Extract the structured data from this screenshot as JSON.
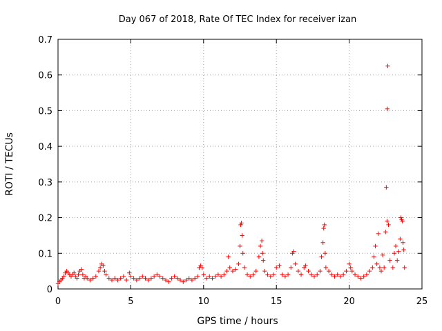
{
  "chart_data": {
    "type": "scatter",
    "title": "Day 067 of 2018, Rate Of TEC Index for receiver izan",
    "xlabel": "GPS time / hours",
    "ylabel": "ROTI / TECUs",
    "xlim": [
      0,
      25
    ],
    "ylim": [
      0,
      0.7
    ],
    "xticks": [
      0,
      5,
      10,
      15,
      20,
      25
    ],
    "yticks": [
      0,
      0.1,
      0.2,
      0.3,
      0.4,
      0.5,
      0.6,
      0.7
    ],
    "grid": true,
    "marker": "+",
    "color": "#ff0000",
    "series": [
      {
        "name": "",
        "points": [
          [
            0.0,
            0.015
          ],
          [
            0.1,
            0.02
          ],
          [
            0.2,
            0.025
          ],
          [
            0.3,
            0.03
          ],
          [
            0.4,
            0.035
          ],
          [
            0.5,
            0.045
          ],
          [
            0.6,
            0.05
          ],
          [
            0.7,
            0.045
          ],
          [
            0.8,
            0.04
          ],
          [
            0.9,
            0.035
          ],
          [
            1.0,
            0.04
          ],
          [
            1.1,
            0.045
          ],
          [
            1.2,
            0.035
          ],
          [
            1.3,
            0.03
          ],
          [
            1.4,
            0.04
          ],
          [
            1.5,
            0.05
          ],
          [
            1.6,
            0.055
          ],
          [
            1.7,
            0.04
          ],
          [
            1.8,
            0.03
          ],
          [
            1.9,
            0.035
          ],
          [
            2.0,
            0.03
          ],
          [
            2.2,
            0.025
          ],
          [
            2.4,
            0.03
          ],
          [
            2.6,
            0.035
          ],
          [
            2.8,
            0.05
          ],
          [
            2.9,
            0.06
          ],
          [
            3.0,
            0.07
          ],
          [
            3.1,
            0.065
          ],
          [
            3.2,
            0.05
          ],
          [
            3.3,
            0.04
          ],
          [
            3.5,
            0.03
          ],
          [
            3.7,
            0.025
          ],
          [
            3.9,
            0.03
          ],
          [
            4.1,
            0.025
          ],
          [
            4.3,
            0.03
          ],
          [
            4.5,
            0.035
          ],
          [
            4.7,
            0.025
          ],
          [
            4.9,
            0.045
          ],
          [
            5.0,
            0.035
          ],
          [
            5.2,
            0.03
          ],
          [
            5.4,
            0.025
          ],
          [
            5.6,
            0.03
          ],
          [
            5.8,
            0.035
          ],
          [
            6.0,
            0.03
          ],
          [
            6.2,
            0.025
          ],
          [
            6.4,
            0.03
          ],
          [
            6.6,
            0.035
          ],
          [
            6.8,
            0.04
          ],
          [
            7.0,
            0.035
          ],
          [
            7.2,
            0.03
          ],
          [
            7.4,
            0.025
          ],
          [
            7.6,
            0.02
          ],
          [
            7.8,
            0.03
          ],
          [
            8.0,
            0.035
          ],
          [
            8.2,
            0.03
          ],
          [
            8.4,
            0.025
          ],
          [
            8.6,
            0.02
          ],
          [
            8.8,
            0.025
          ],
          [
            9.0,
            0.03
          ],
          [
            9.2,
            0.025
          ],
          [
            9.4,
            0.03
          ],
          [
            9.6,
            0.035
          ],
          [
            9.7,
            0.06
          ],
          [
            9.8,
            0.065
          ],
          [
            9.9,
            0.06
          ],
          [
            10.0,
            0.04
          ],
          [
            10.2,
            0.03
          ],
          [
            10.4,
            0.035
          ],
          [
            10.6,
            0.03
          ],
          [
            10.8,
            0.035
          ],
          [
            11.0,
            0.04
          ],
          [
            11.2,
            0.035
          ],
          [
            11.4,
            0.04
          ],
          [
            11.6,
            0.05
          ],
          [
            11.7,
            0.09
          ],
          [
            11.8,
            0.06
          ],
          [
            12.0,
            0.05
          ],
          [
            12.2,
            0.055
          ],
          [
            12.4,
            0.07
          ],
          [
            12.5,
            0.12
          ],
          [
            12.55,
            0.18
          ],
          [
            12.6,
            0.185
          ],
          [
            12.65,
            0.15
          ],
          [
            12.7,
            0.1
          ],
          [
            12.8,
            0.06
          ],
          [
            13.0,
            0.04
          ],
          [
            13.2,
            0.035
          ],
          [
            13.4,
            0.04
          ],
          [
            13.6,
            0.05
          ],
          [
            13.8,
            0.09
          ],
          [
            13.9,
            0.12
          ],
          [
            14.0,
            0.135
          ],
          [
            14.05,
            0.1
          ],
          [
            14.1,
            0.08
          ],
          [
            14.2,
            0.05
          ],
          [
            14.4,
            0.04
          ],
          [
            14.6,
            0.035
          ],
          [
            14.8,
            0.04
          ],
          [
            15.0,
            0.06
          ],
          [
            15.2,
            0.065
          ],
          [
            15.4,
            0.04
          ],
          [
            15.6,
            0.035
          ],
          [
            15.8,
            0.04
          ],
          [
            16.0,
            0.06
          ],
          [
            16.1,
            0.1
          ],
          [
            16.2,
            0.105
          ],
          [
            16.3,
            0.07
          ],
          [
            16.5,
            0.05
          ],
          [
            16.7,
            0.04
          ],
          [
            16.9,
            0.06
          ],
          [
            17.0,
            0.065
          ],
          [
            17.2,
            0.05
          ],
          [
            17.4,
            0.04
          ],
          [
            17.6,
            0.035
          ],
          [
            17.8,
            0.04
          ],
          [
            18.0,
            0.05
          ],
          [
            18.1,
            0.09
          ],
          [
            18.2,
            0.13
          ],
          [
            18.25,
            0.17
          ],
          [
            18.3,
            0.18
          ],
          [
            18.35,
            0.1
          ],
          [
            18.4,
            0.06
          ],
          [
            18.6,
            0.05
          ],
          [
            18.8,
            0.04
          ],
          [
            19.0,
            0.035
          ],
          [
            19.2,
            0.04
          ],
          [
            19.4,
            0.035
          ],
          [
            19.6,
            0.04
          ],
          [
            19.8,
            0.05
          ],
          [
            20.0,
            0.07
          ],
          [
            20.1,
            0.06
          ],
          [
            20.2,
            0.05
          ],
          [
            20.4,
            0.04
          ],
          [
            20.6,
            0.035
          ],
          [
            20.8,
            0.03
          ],
          [
            21.0,
            0.035
          ],
          [
            21.2,
            0.04
          ],
          [
            21.4,
            0.05
          ],
          [
            21.6,
            0.06
          ],
          [
            21.7,
            0.09
          ],
          [
            21.8,
            0.12
          ],
          [
            21.9,
            0.07
          ],
          [
            22.0,
            0.155
          ],
          [
            22.1,
            0.06
          ],
          [
            22.2,
            0.05
          ],
          [
            22.3,
            0.095
          ],
          [
            22.4,
            0.06
          ],
          [
            22.5,
            0.16
          ],
          [
            22.55,
            0.285
          ],
          [
            22.6,
            0.19
          ],
          [
            22.62,
            0.505
          ],
          [
            22.65,
            0.625
          ],
          [
            22.7,
            0.18
          ],
          [
            22.8,
            0.08
          ],
          [
            23.0,
            0.06
          ],
          [
            23.1,
            0.1
          ],
          [
            23.2,
            0.12
          ],
          [
            23.3,
            0.08
          ],
          [
            23.4,
            0.105
          ],
          [
            23.5,
            0.14
          ],
          [
            23.55,
            0.2
          ],
          [
            23.6,
            0.195
          ],
          [
            23.65,
            0.19
          ],
          [
            23.7,
            0.13
          ],
          [
            23.75,
            0.11
          ],
          [
            23.8,
            0.06
          ]
        ]
      }
    ]
  }
}
